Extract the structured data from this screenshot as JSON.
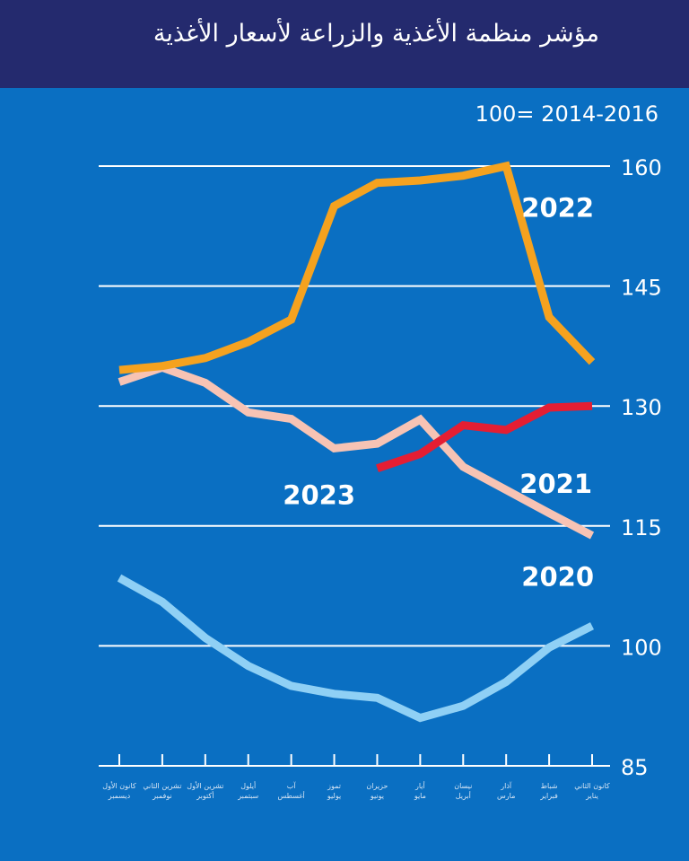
{
  "header": {
    "title": "مؤشر منظمة الأغذية والزراعة لأسعار الأغذية"
  },
  "colors": {
    "background": "#0a6fc2",
    "header": "#242a6e",
    "grid": "#ffffff"
  },
  "chart_data": {
    "type": "line",
    "title": "مؤشر منظمة الأغذية والزراعة لأسعار الأغذية",
    "base_note": "100= 2014-2016",
    "ylim": [
      85,
      160
    ],
    "yticks": [
      85,
      100,
      115,
      130,
      145,
      160
    ],
    "x_direction": "right-to-left",
    "categories": [
      "كانون الثاني / يناير",
      "شباط / فبراير",
      "آذار / مارس",
      "نيسان / أبريل",
      "أيار / مايو",
      "حزيران / يونيو",
      "تموز / يوليو",
      "آب / أغسطس",
      "أيلول / سبتمبر",
      "تشرين الأول / أكتوبر",
      "تشرين الثاني / نوفمبر",
      "كانون الأول / ديسمبر"
    ],
    "series": [
      {
        "name": "2022",
        "color": "#f5a21f",
        "label_pos": "top-right",
        "values": [
          135.5,
          141.1,
          160.0,
          158.8,
          158.2,
          157.9,
          155.0,
          140.8,
          138.0,
          136.0,
          135.0,
          134.5
        ]
      },
      {
        "name": "2021",
        "color": "#e41e33",
        "label_pos": "right",
        "values": [
          130.0,
          129.8,
          127.0,
          127.6,
          124.0,
          122.2,
          null,
          null,
          null,
          null,
          null,
          null
        ]
      },
      {
        "name": "2023",
        "color": "#f7c3b4",
        "label_pos": "left",
        "values": [
          113.8,
          116.6,
          119.5,
          122.4,
          128.3,
          125.3,
          124.7,
          128.4,
          129.2,
          132.9,
          134.8,
          133.0
        ]
      },
      {
        "name": "2020",
        "color": "#8fd0f5",
        "label_pos": "top-right",
        "values": [
          102.5,
          99.8,
          95.5,
          92.5,
          91.0,
          93.5,
          94.0,
          95.0,
          97.5,
          101.0,
          105.5,
          108.5
        ]
      }
    ]
  }
}
